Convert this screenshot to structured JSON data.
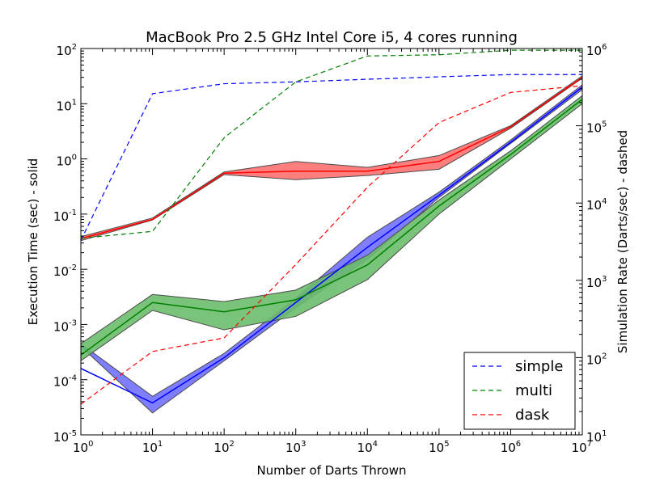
{
  "chart_data": {
    "type": "line",
    "title": "MacBook Pro 2.5 GHz Intel Core i5, 4 cores running",
    "xlabel": "Number of Darts Thrown",
    "ylabel_left": "Execution Time (sec) - solid",
    "ylabel_right": "Simulation Rate (Darts/sec) - dashed",
    "x_scale": "log",
    "y_scale_left": "log",
    "y_scale_right": "log",
    "x_ticks": [
      1,
      10,
      100,
      1000,
      10000,
      100000,
      1000000,
      10000000
    ],
    "x_tick_labels": [
      {
        "base": "10",
        "exp": "0"
      },
      {
        "base": "10",
        "exp": "1"
      },
      {
        "base": "10",
        "exp": "2"
      },
      {
        "base": "10",
        "exp": "3"
      },
      {
        "base": "10",
        "exp": "4"
      },
      {
        "base": "10",
        "exp": "5"
      },
      {
        "base": "10",
        "exp": "6"
      },
      {
        "base": "10",
        "exp": "7"
      }
    ],
    "y_left_ticks": [
      1e-05,
      0.0001,
      0.001,
      0.01,
      0.1,
      1,
      10,
      100
    ],
    "y_left_tick_labels": [
      {
        "base": "10",
        "exp": "-5"
      },
      {
        "base": "10",
        "exp": "-4"
      },
      {
        "base": "10",
        "exp": "-3"
      },
      {
        "base": "10",
        "exp": "-2"
      },
      {
        "base": "10",
        "exp": "-1"
      },
      {
        "base": "10",
        "exp": "0"
      },
      {
        "base": "10",
        "exp": "1"
      },
      {
        "base": "10",
        "exp": "2"
      }
    ],
    "y_right_ticks": [
      10,
      100,
      1000,
      10000,
      100000,
      1000000
    ],
    "y_right_tick_labels": [
      {
        "base": "10",
        "exp": "1"
      },
      {
        "base": "10",
        "exp": "2"
      },
      {
        "base": "10",
        "exp": "3"
      },
      {
        "base": "10",
        "exp": "4"
      },
      {
        "base": "10",
        "exp": "5"
      },
      {
        "base": "10",
        "exp": "6"
      }
    ],
    "xlim": [
      1,
      10000000
    ],
    "ylim_left": [
      1e-05,
      100
    ],
    "ylim_right": [
      10,
      1000000
    ],
    "grid": false,
    "legend_position": "lower-right",
    "x": [
      1,
      10,
      100,
      1000,
      10000,
      100000,
      1000000,
      10000000
    ],
    "time_series": [
      {
        "name": "simple",
        "color": "#0000ff",
        "fill": "#7070ff",
        "mean": [
          0.00016,
          3.8e-05,
          0.00025,
          0.0025,
          0.025,
          0.22,
          2.0,
          20
        ],
        "lower": [
          0.0004,
          2.5e-05,
          0.00022,
          0.002,
          0.015,
          0.2,
          1.9,
          18
        ],
        "upper": [
          0.00045,
          5e-05,
          0.0003,
          0.003,
          0.038,
          0.25,
          2.2,
          22
        ]
      },
      {
        "name": "multi",
        "color": "#008000",
        "fill": "#6cbc6c",
        "mean": [
          0.00028,
          0.0025,
          0.0017,
          0.0028,
          0.012,
          0.14,
          1.2,
          12
        ],
        "lower": [
          0.00022,
          0.0018,
          0.0008,
          0.0014,
          0.0065,
          0.1,
          1.0,
          10
        ],
        "upper": [
          0.00045,
          0.0035,
          0.0026,
          0.0042,
          0.018,
          0.18,
          1.4,
          14
        ]
      },
      {
        "name": "dask",
        "color": "#ff0000",
        "fill": "#ff7070",
        "mean": [
          0.036,
          0.08,
          0.55,
          0.6,
          0.6,
          0.9,
          3.8,
          30
        ],
        "lower": [
          0.033,
          0.078,
          0.52,
          0.42,
          0.5,
          0.65,
          3.6,
          29
        ],
        "upper": [
          0.039,
          0.085,
          0.58,
          0.9,
          0.7,
          1.15,
          4.0,
          32
        ]
      }
    ],
    "rate_series": [
      {
        "name": "simple",
        "color": "#0000ff",
        "values": [
          3300,
          260000,
          350000,
          370000,
          400000,
          430000,
          460000,
          460000
        ]
      },
      {
        "name": "multi",
        "color": "#008000",
        "values": [
          3500,
          4300,
          70000,
          370000,
          800000,
          830000,
          950000,
          950000
        ]
      },
      {
        "name": "dask",
        "color": "#ff0000",
        "values": [
          25,
          120,
          180,
          1600,
          16000,
          110000,
          270000,
          330000
        ]
      }
    ],
    "legend": [
      {
        "label": "simple",
        "color": "#0000ff"
      },
      {
        "label": "multi",
        "color": "#008000"
      },
      {
        "label": "dask",
        "color": "#ff0000"
      }
    ]
  }
}
